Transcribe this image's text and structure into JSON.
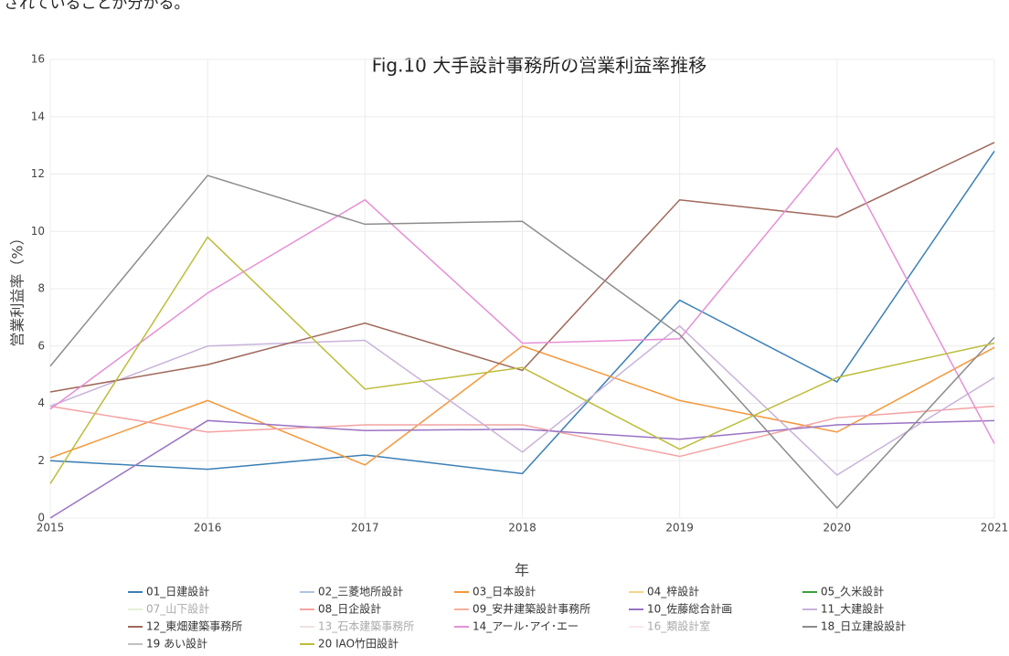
{
  "intro": "されていることが分かる。",
  "chart_data": {
    "type": "line",
    "title": "Fig.10  大手設計事務所の営業利益率推移",
    "x_label": "年",
    "y_label": "営業利益率（%）",
    "x": [
      2015,
      2016,
      2017,
      2018,
      2019,
      2020,
      2021
    ],
    "xlim": [
      2015,
      2021
    ],
    "xticks": [
      2015,
      2016,
      2017,
      2018,
      2019,
      2020,
      2021
    ],
    "ylim": [
      0,
      16
    ],
    "yticks": [
      0,
      2,
      4,
      6,
      8,
      10,
      12,
      14,
      16
    ],
    "grid": true,
    "series": [
      {
        "name": "01_日建設計",
        "color": "#3a7fb5",
        "values": [
          2.0,
          1.7,
          2.2,
          1.55,
          7.6,
          4.75,
          12.8
        ]
      },
      {
        "name": "02_三菱地所設計",
        "color": "#b0c4de",
        "values": [
          null,
          null,
          null,
          null,
          null,
          null,
          null
        ]
      },
      {
        "name": "03_日本設計",
        "color": "#f5973a",
        "values": [
          2.1,
          4.1,
          1.85,
          6.0,
          4.1,
          3.0,
          5.95
        ]
      },
      {
        "name": "04_梓設計",
        "color": "#f5d58b",
        "values": [
          null,
          null,
          null,
          null,
          null,
          null,
          null
        ]
      },
      {
        "name": "05_久米設計",
        "color": "#3aa03a",
        "values": [
          null,
          null,
          null,
          null,
          null,
          null,
          null
        ]
      },
      {
        "name": "07_山下設計",
        "color": "#c8e6b0",
        "visible": false,
        "values": [
          null,
          null,
          null,
          null,
          null,
          null,
          null
        ]
      },
      {
        "name": "08_日企設計",
        "color": "#f4a3a3",
        "values": [
          3.9,
          3.0,
          3.25,
          3.25,
          2.15,
          3.5,
          3.9
        ]
      },
      {
        "name": "09_安井建築設計事務所",
        "color": "#f7b09a",
        "values": [
          null,
          null,
          null,
          null,
          null,
          null,
          null
        ]
      },
      {
        "name": "10_佐藤総合計画",
        "color": "#9a73c4",
        "values": [
          0.0,
          3.4,
          3.05,
          3.1,
          2.75,
          3.25,
          3.4
        ]
      },
      {
        "name": "11_大建設計",
        "color": "#c9b3db",
        "values": [
          3.9,
          6.0,
          6.2,
          2.3,
          6.7,
          1.5,
          4.9
        ]
      },
      {
        "name": "12_東畑建築事務所",
        "color": "#a0685a",
        "values": [
          4.4,
          5.35,
          6.8,
          5.15,
          11.1,
          10.5,
          13.1
        ]
      },
      {
        "name": "13_石本建築事務所",
        "color": "#dcc8c0",
        "visible": false,
        "values": [
          null,
          null,
          null,
          null,
          null,
          null,
          null
        ]
      },
      {
        "name": "14_アール･アイ･エー",
        "color": "#e68fd6",
        "values": [
          3.8,
          7.85,
          11.1,
          6.1,
          6.25,
          12.9,
          2.6
        ]
      },
      {
        "name": "16_類設計室",
        "color": "#f7d0d8",
        "visible": false,
        "values": [
          null,
          null,
          null,
          null,
          null,
          null,
          null
        ]
      },
      {
        "name": "18_日立建設設計",
        "color": "#8c8c8c",
        "values": [
          5.3,
          11.95,
          10.25,
          10.35,
          6.4,
          0.35,
          6.3
        ]
      },
      {
        "name": "19 あい設計",
        "color": "#c0c0c0",
        "values": [
          null,
          null,
          null,
          null,
          null,
          null,
          null
        ]
      },
      {
        "name": "20 IAO竹田設計",
        "color": "#bcbd3a",
        "values": [
          1.2,
          9.8,
          4.5,
          5.25,
          2.4,
          4.9,
          6.1
        ]
      }
    ]
  }
}
